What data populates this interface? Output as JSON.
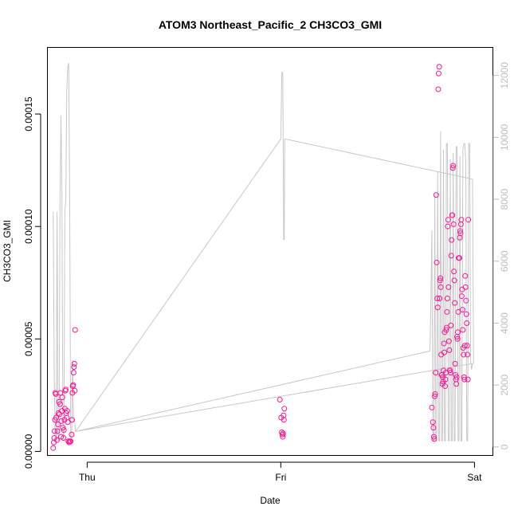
{
  "chart_data": {
    "type": "scatter",
    "title": "ATOM3 Northeast_Pacific_2 CH3CO3_GMI",
    "xlabel": "Date",
    "ylabel": "CH3CO3_GMI",
    "x_ticks": [
      {
        "label": "Thu",
        "t": 0
      },
      {
        "label": "Fri",
        "t": 1
      },
      {
        "label": "Sat",
        "t": 2
      }
    ],
    "xlim": [
      -0.205,
      2.095
    ],
    "ylim_left": [
      -1.8e-06,
      0.0001796
    ],
    "yticks_left": [
      {
        "label": "0.00000",
        "v": 0.0
      },
      {
        "label": "0.00005",
        "v": 5e-05
      },
      {
        "label": "0.00010",
        "v": 0.0001
      },
      {
        "label": "0.00015",
        "v": 0.00015
      }
    ],
    "ylim_right": [
      -274,
      12905
    ],
    "yticks_right": [
      {
        "label": "0",
        "v": 0
      },
      {
        "label": "2000",
        "v": 2000
      },
      {
        "label": "4000",
        "v": 4000
      },
      {
        "label": "6000",
        "v": 6000
      },
      {
        "label": "8000",
        "v": 8000
      },
      {
        "label": "10000",
        "v": 10000
      },
      {
        "label": "12000",
        "v": 12000
      }
    ],
    "colors": {
      "points": "#ff1493",
      "line": "#c8c8c8",
      "right_axis": "#bdbdbd",
      "axis": "#000000"
    },
    "series": [
      {
        "type": "scatter",
        "axis": "left",
        "points": [
          [
            -0.175,
            1.5e-06
          ],
          [
            -0.172,
            4e-06
          ],
          [
            -0.17,
            6e-06
          ],
          [
            -0.168,
            9e-06
          ],
          [
            -0.166,
            1.4e-05
          ],
          [
            -0.164,
            2.6e-05
          ],
          [
            -0.162,
            2.55e-05
          ],
          [
            -0.16,
            1.5e-05
          ],
          [
            -0.156,
            5e-06
          ],
          [
            -0.153,
            9e-06
          ],
          [
            -0.15,
            1.2e-05
          ],
          [
            -0.148,
            1.7e-05
          ],
          [
            -0.145,
            2.2e-05
          ],
          [
            -0.143,
            1.65e-05
          ],
          [
            -0.14,
            2.1e-05
          ],
          [
            -0.138,
            2.6e-05
          ],
          [
            -0.135,
            6.5e-06
          ],
          [
            -0.133,
            1.35e-05
          ],
          [
            -0.13,
            1.8e-05
          ],
          [
            -0.128,
            2.4e-05
          ],
          [
            -0.125,
            1.05e-05
          ],
          [
            -0.122,
            6e-06
          ],
          [
            -0.12,
            9.5e-06
          ],
          [
            -0.117,
            1.4e-05
          ],
          [
            -0.115,
            1.9e-05
          ],
          [
            -0.113,
            2.7e-05
          ],
          [
            -0.11,
            2.75e-05
          ],
          [
            -0.108,
            1.7e-05
          ],
          [
            -0.105,
            1.5e-05
          ],
          [
            -0.103,
            1.8e-05
          ],
          [
            -0.1,
            1.3e-05
          ],
          [
            -0.097,
            4.5e-06
          ],
          [
            -0.093,
            4e-06
          ],
          [
            -0.09,
            4.5e-06
          ],
          [
            -0.085,
            4.5e-06
          ],
          [
            -0.08,
            7.5e-06
          ],
          [
            -0.078,
            1.4e-05
          ],
          [
            -0.076,
            2.6e-05
          ],
          [
            -0.074,
            2.9e-05
          ],
          [
            -0.072,
            2.95e-05
          ],
          [
            -0.07,
            3.5e-05
          ],
          [
            -0.068,
            3.75e-05
          ],
          [
            -0.066,
            3.9e-05
          ],
          [
            -0.064,
            2.7e-05
          ],
          [
            -0.062,
            5.4e-05
          ],
          [
            0.995,
            2.3e-05
          ],
          [
            1.002,
            1.5e-05
          ],
          [
            1.005,
            8.5e-06
          ],
          [
            1.008,
            7.5e-06
          ],
          [
            1.01,
            6.5e-06
          ],
          [
            1.012,
            8e-06
          ],
          [
            1.014,
            1.6e-05
          ],
          [
            1.016,
            1.4e-05
          ],
          [
            1.018,
            1.9e-05
          ],
          [
            1.78,
            1.95e-05
          ],
          [
            1.785,
            1.3e-05
          ],
          [
            1.788,
            1.05e-05
          ],
          [
            1.79,
            6.5e-06
          ],
          [
            1.792,
            5.5e-06
          ],
          [
            1.795,
            2.45e-05
          ],
          [
            1.797,
            2.55e-05
          ],
          [
            1.8,
            3.5e-05
          ],
          [
            1.802,
            0.000114
          ],
          [
            1.805,
            8.4e-05
          ],
          [
            1.808,
            6.8e-05
          ],
          [
            1.81,
            6.4e-05
          ],
          [
            1.813,
            0.000161
          ],
          [
            1.815,
            0.000168
          ],
          [
            1.818,
            0.000171
          ],
          [
            1.82,
            6.8e-05
          ],
          [
            1.822,
            7.6e-05
          ],
          [
            1.824,
            7.7e-05
          ],
          [
            1.826,
            7.3e-05
          ],
          [
            1.828,
            4.3e-05
          ],
          [
            1.83,
            3.4e-05
          ],
          [
            1.832,
            3.4e-05
          ],
          [
            1.834,
            3e-05
          ],
          [
            1.836,
            3.3e-05
          ],
          [
            1.838,
            3.1e-05
          ],
          [
            1.84,
            3.6e-05
          ],
          [
            1.842,
            4.8e-05
          ],
          [
            1.844,
            4.4e-05
          ],
          [
            1.846,
            5.3e-05
          ],
          [
            1.848,
            2.9e-05
          ],
          [
            1.85,
            3.2e-05
          ],
          [
            1.852,
            3.5e-05
          ],
          [
            1.854,
            5.4e-05
          ],
          [
            1.856,
            5.5e-05
          ],
          [
            1.858,
            6.2e-05
          ],
          [
            1.86,
            6.8e-05
          ],
          [
            1.862,
            0.0001
          ],
          [
            1.864,
            0.000103
          ],
          [
            1.866,
            7.3e-05
          ],
          [
            1.868,
            4.9e-05
          ],
          [
            1.87,
            4.5e-05
          ],
          [
            1.872,
            3.6e-05
          ],
          [
            1.874,
            3.6e-05
          ],
          [
            1.876,
            3.5e-05
          ],
          [
            1.878,
            5.6e-05
          ],
          [
            1.88,
            8.7e-05
          ],
          [
            1.882,
            9.4e-05
          ],
          [
            1.884,
            0.000105
          ],
          [
            1.886,
            0.000105
          ],
          [
            1.888,
            0.000126
          ],
          [
            1.89,
            0.000127
          ],
          [
            1.892,
            0.000101
          ],
          [
            1.894,
            8e-05
          ],
          [
            1.896,
            7.6e-05
          ],
          [
            1.898,
            6.6e-05
          ],
          [
            1.9,
            3.9e-05
          ],
          [
            1.902,
            3.4e-05
          ],
          [
            1.904,
            3.2e-05
          ],
          [
            1.906,
            3e-05
          ],
          [
            1.908,
            3.3e-05
          ],
          [
            1.91,
            5.1e-05
          ],
          [
            1.912,
            5e-05
          ],
          [
            1.914,
            5.3e-05
          ],
          [
            1.916,
            6.2e-05
          ],
          [
            1.918,
            8.6e-05
          ],
          [
            1.92,
            8.6e-05
          ],
          [
            1.922,
            8.6e-05
          ],
          [
            1.924,
            9.5e-05
          ],
          [
            1.926,
            9.8e-05
          ],
          [
            1.928,
            9.7e-05
          ],
          [
            1.93,
            0.000101
          ],
          [
            1.932,
            0.000103
          ],
          [
            1.934,
            6.9e-05
          ],
          [
            1.936,
            7.2e-05
          ],
          [
            1.938,
            6.3e-05
          ],
          [
            1.94,
            5.4e-05
          ],
          [
            1.942,
            4.6e-05
          ],
          [
            1.944,
            4.3e-05
          ],
          [
            1.946,
            3.3e-05
          ],
          [
            1.948,
            3.2e-05
          ],
          [
            1.95,
            4.7e-05
          ],
          [
            1.952,
            7.8e-05
          ],
          [
            1.954,
            7.3e-05
          ],
          [
            1.956,
            6.7e-05
          ],
          [
            1.958,
            6.1e-05
          ],
          [
            1.96,
            5.7e-05
          ],
          [
            1.962,
            4.7e-05
          ],
          [
            1.964,
            4.3e-05
          ],
          [
            1.966,
            3.2e-05
          ],
          [
            1.968,
            0.000103
          ]
        ]
      },
      {
        "type": "line",
        "axis": "right",
        "points": [
          [
            -0.175,
            7600
          ],
          [
            -0.17,
            2400
          ],
          [
            -0.165,
            200
          ],
          [
            -0.16,
            200
          ],
          [
            -0.155,
            7600
          ],
          [
            -0.15,
            200
          ],
          [
            -0.145,
            200
          ],
          [
            -0.14,
            8000
          ],
          [
            -0.135,
            10700
          ],
          [
            -0.13,
            8000
          ],
          [
            -0.125,
            600
          ],
          [
            -0.12,
            200
          ],
          [
            -0.115,
            7600
          ],
          [
            -0.11,
            8000
          ],
          [
            -0.105,
            11500
          ],
          [
            -0.1,
            12300
          ],
          [
            -0.095,
            12400
          ],
          [
            -0.09,
            8000
          ],
          [
            -0.085,
            200
          ],
          [
            -0.08,
            200
          ],
          [
            -0.075,
            2800
          ],
          [
            -0.07,
            800
          ],
          [
            -0.065,
            900
          ],
          [
            -0.06,
            500
          ],
          [
            1.0,
            9950
          ],
          [
            1.005,
            12100
          ],
          [
            1.01,
            12100
          ],
          [
            1.015,
            6700
          ],
          [
            1.018,
            6700
          ],
          [
            1.02,
            9950
          ],
          [
            1.99,
            8650
          ],
          [
            1.995,
            2700
          ],
          [
            -0.06,
            500
          ],
          [
            1.77,
            3100
          ],
          [
            1.775,
            4800
          ],
          [
            1.78,
            7000
          ],
          [
            1.785,
            200
          ],
          [
            1.79,
            200
          ],
          [
            1.795,
            8100
          ],
          [
            1.8,
            200
          ],
          [
            1.805,
            200
          ],
          [
            1.81,
            8900
          ],
          [
            1.815,
            200
          ],
          [
            1.82,
            200
          ],
          [
            1.825,
            10200
          ],
          [
            1.83,
            200
          ],
          [
            1.835,
            200
          ],
          [
            1.84,
            9600
          ],
          [
            1.845,
            200
          ],
          [
            1.85,
            200
          ],
          [
            1.855,
            9800
          ],
          [
            1.86,
            9800
          ],
          [
            1.865,
            200
          ],
          [
            1.87,
            200
          ],
          [
            1.875,
            9300
          ],
          [
            1.88,
            200
          ],
          [
            1.885,
            200
          ],
          [
            1.89,
            9500
          ],
          [
            1.895,
            200
          ],
          [
            1.9,
            200
          ],
          [
            1.905,
            9700
          ],
          [
            1.91,
            9700
          ],
          [
            1.915,
            200
          ],
          [
            1.92,
            200
          ],
          [
            1.925,
            9400
          ],
          [
            1.93,
            200
          ],
          [
            1.935,
            200
          ],
          [
            1.94,
            9600
          ],
          [
            1.945,
            9800
          ],
          [
            1.95,
            9800
          ],
          [
            1.955,
            9200
          ],
          [
            1.96,
            200
          ],
          [
            1.965,
            200
          ],
          [
            1.97,
            9800
          ],
          [
            1.975,
            9800
          ],
          [
            1.98,
            2800
          ],
          [
            1.985,
            2500
          ],
          [
            1.99,
            2700
          ]
        ]
      }
    ]
  }
}
